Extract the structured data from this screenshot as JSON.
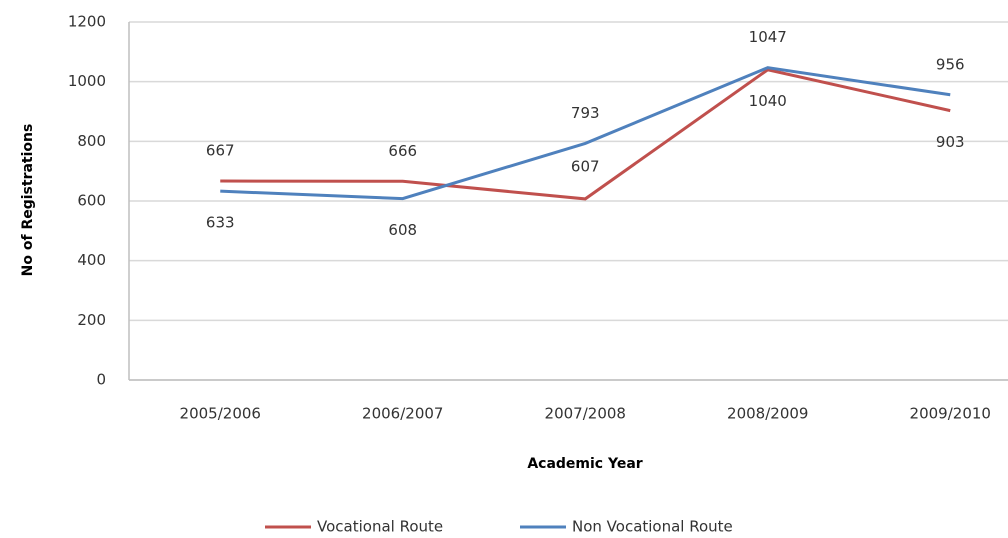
{
  "chart_data": {
    "type": "line",
    "x_label": "Academic Year",
    "y_label": "No of Registrations",
    "categories": [
      "2005/2006",
      "2006/2007",
      "2007/2008",
      "2008/2009",
      "2009/2010"
    ],
    "series": [
      {
        "name": "Vocational Route",
        "color": "#c0504d",
        "values": [
          667,
          666,
          607,
          1040,
          903
        ]
      },
      {
        "name": "Non Vocational Route",
        "color": "#4f81bd",
        "values": [
          633,
          608,
          793,
          1047,
          956
        ]
      }
    ],
    "ylim": [
      0,
      1200
    ],
    "yticks": [
      0,
      200,
      400,
      600,
      800,
      1000,
      1200
    ],
    "grid": true,
    "legend": "bottom"
  }
}
